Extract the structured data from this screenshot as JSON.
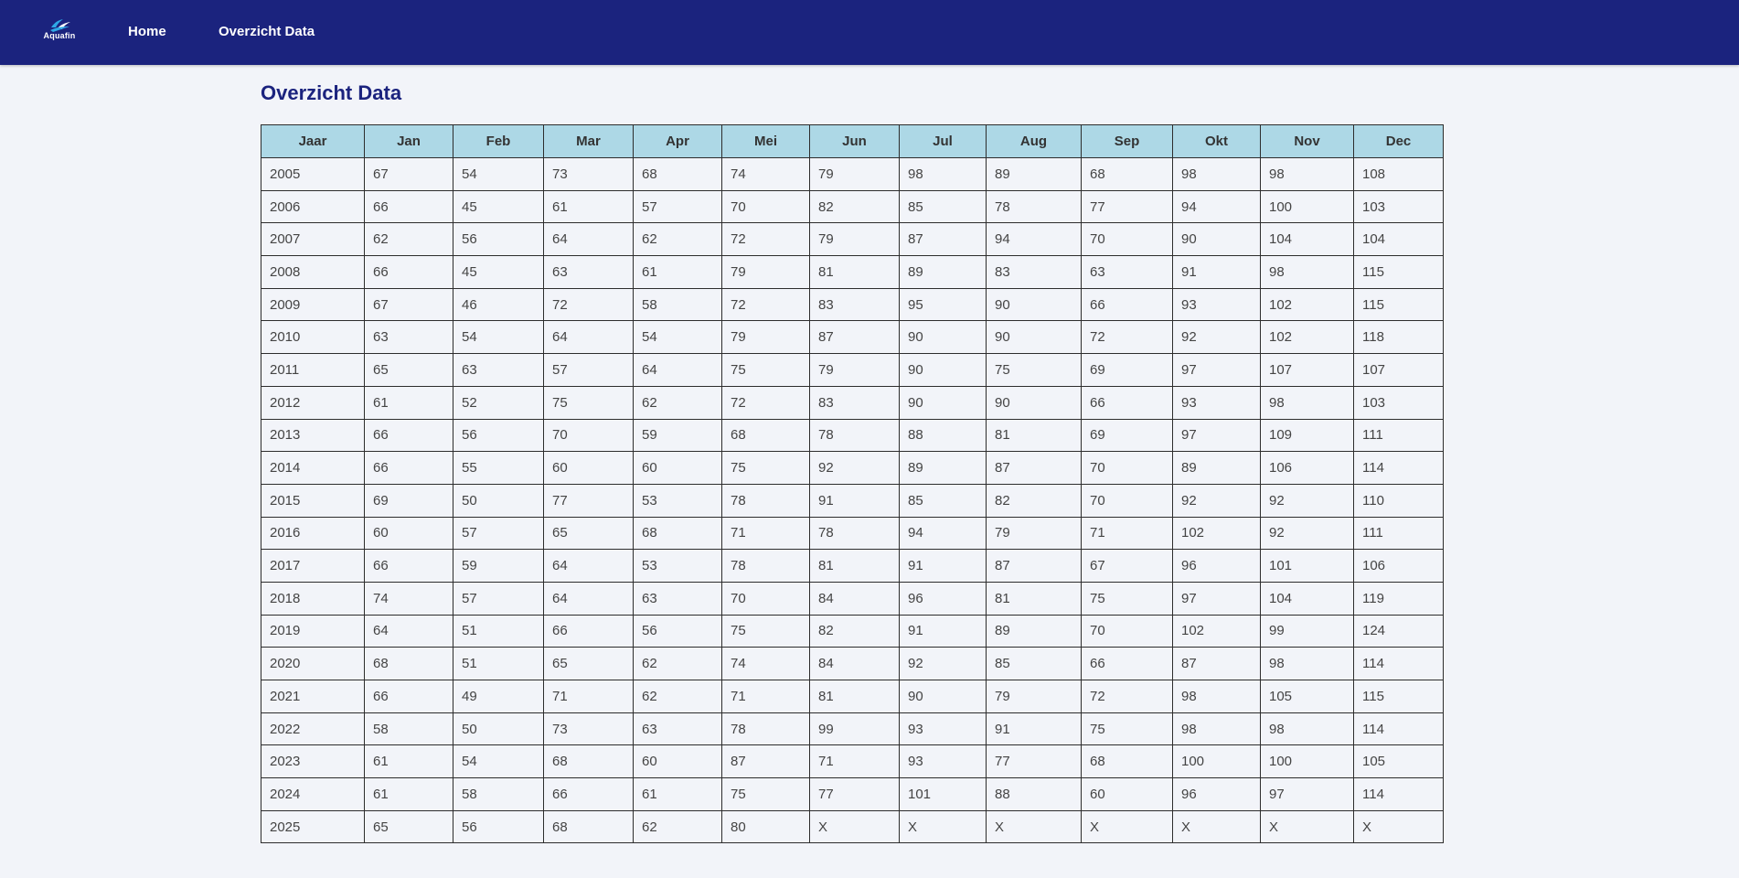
{
  "header": {
    "logo_text": "Aquafin",
    "nav": {
      "home": "Home",
      "overzicht": "Overzicht Data"
    }
  },
  "page": {
    "title": "Overzicht Data"
  },
  "colors": {
    "topbar": "#1b237e",
    "table_header": "#add8e6",
    "title": "#1b237e",
    "background": "#f2f4f9"
  },
  "table": {
    "columns": [
      "Jaar",
      "Jan",
      "Feb",
      "Mar",
      "Apr",
      "Mei",
      "Jun",
      "Jul",
      "Aug",
      "Sep",
      "Okt",
      "Nov",
      "Dec"
    ],
    "rows": [
      [
        "2005",
        "67",
        "54",
        "73",
        "68",
        "74",
        "79",
        "98",
        "89",
        "68",
        "98",
        "98",
        "108"
      ],
      [
        "2006",
        "66",
        "45",
        "61",
        "57",
        "70",
        "82",
        "85",
        "78",
        "77",
        "94",
        "100",
        "103"
      ],
      [
        "2007",
        "62",
        "56",
        "64",
        "62",
        "72",
        "79",
        "87",
        "94",
        "70",
        "90",
        "104",
        "104"
      ],
      [
        "2008",
        "66",
        "45",
        "63",
        "61",
        "79",
        "81",
        "89",
        "83",
        "63",
        "91",
        "98",
        "115"
      ],
      [
        "2009",
        "67",
        "46",
        "72",
        "58",
        "72",
        "83",
        "95",
        "90",
        "66",
        "93",
        "102",
        "115"
      ],
      [
        "2010",
        "63",
        "54",
        "64",
        "54",
        "79",
        "87",
        "90",
        "90",
        "72",
        "92",
        "102",
        "118"
      ],
      [
        "2011",
        "65",
        "63",
        "57",
        "64",
        "75",
        "79",
        "90",
        "75",
        "69",
        "97",
        "107",
        "107"
      ],
      [
        "2012",
        "61",
        "52",
        "75",
        "62",
        "72",
        "83",
        "90",
        "90",
        "66",
        "93",
        "98",
        "103"
      ],
      [
        "2013",
        "66",
        "56",
        "70",
        "59",
        "68",
        "78",
        "88",
        "81",
        "69",
        "97",
        "109",
        "111"
      ],
      [
        "2014",
        "66",
        "55",
        "60",
        "60",
        "75",
        "92",
        "89",
        "87",
        "70",
        "89",
        "106",
        "114"
      ],
      [
        "2015",
        "69",
        "50",
        "77",
        "53",
        "78",
        "91",
        "85",
        "82",
        "70",
        "92",
        "92",
        "110"
      ],
      [
        "2016",
        "60",
        "57",
        "65",
        "68",
        "71",
        "78",
        "94",
        "79",
        "71",
        "102",
        "92",
        "111"
      ],
      [
        "2017",
        "66",
        "59",
        "64",
        "53",
        "78",
        "81",
        "91",
        "87",
        "67",
        "96",
        "101",
        "106"
      ],
      [
        "2018",
        "74",
        "57",
        "64",
        "63",
        "70",
        "84",
        "96",
        "81",
        "75",
        "97",
        "104",
        "119"
      ],
      [
        "2019",
        "64",
        "51",
        "66",
        "56",
        "75",
        "82",
        "91",
        "89",
        "70",
        "102",
        "99",
        "124"
      ],
      [
        "2020",
        "68",
        "51",
        "65",
        "62",
        "74",
        "84",
        "92",
        "85",
        "66",
        "87",
        "98",
        "114"
      ],
      [
        "2021",
        "66",
        "49",
        "71",
        "62",
        "71",
        "81",
        "90",
        "79",
        "72",
        "98",
        "105",
        "115"
      ],
      [
        "2022",
        "58",
        "50",
        "73",
        "63",
        "78",
        "99",
        "93",
        "91",
        "75",
        "98",
        "98",
        "114"
      ],
      [
        "2023",
        "61",
        "54",
        "68",
        "60",
        "87",
        "71",
        "93",
        "77",
        "68",
        "100",
        "100",
        "105"
      ],
      [
        "2024",
        "61",
        "58",
        "66",
        "61",
        "75",
        "77",
        "101",
        "88",
        "60",
        "96",
        "97",
        "114"
      ],
      [
        "2025",
        "65",
        "56",
        "68",
        "62",
        "80",
        "X",
        "X",
        "X",
        "X",
        "X",
        "X",
        "X"
      ]
    ]
  }
}
